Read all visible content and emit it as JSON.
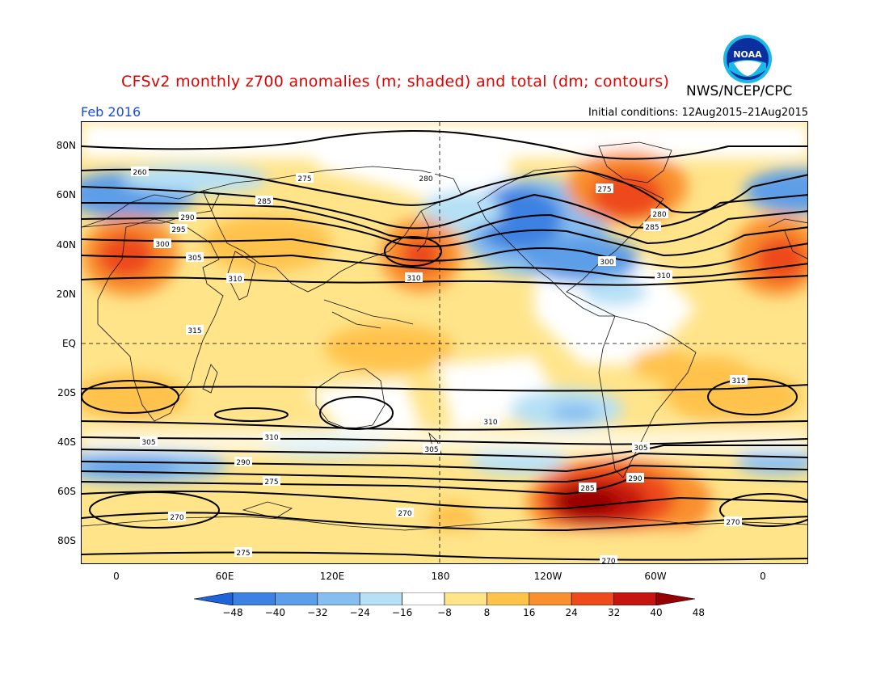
{
  "title": "CFSv2 monthly z700 anomalies (m; shaded) and total (dm; contours)",
  "organization": "NWS/NCEP/CPC",
  "logo_text": "NOAA",
  "month": "Feb 2016",
  "initial_conditions": "Initial conditions: 12Aug2015–21Aug2015",
  "lat_ticks": [
    "80N",
    "60N",
    "40N",
    "20N",
    "EQ",
    "20S",
    "40S",
    "60S",
    "80S"
  ],
  "lon_ticks": [
    "0",
    "60E",
    "120E",
    "180",
    "120W",
    "60W",
    "0"
  ],
  "colorbar": {
    "labels": [
      "-48",
      "-40",
      "-32",
      "-24",
      "-16",
      "-8",
      "8",
      "16",
      "24",
      "32",
      "40",
      "48"
    ],
    "colors": [
      "#1e63d9",
      "#3d82e2",
      "#5d9ee8",
      "#87bef0",
      "#b5e0f6",
      "#ffffff",
      "#ffe48a",
      "#ffc24b",
      "#f98f2e",
      "#ee4a1c",
      "#c5150e",
      "#960000"
    ]
  },
  "contour_labels": [
    "260",
    "275",
    "280",
    "285",
    "290",
    "295",
    "300",
    "305",
    "310",
    "315",
    "270"
  ]
}
